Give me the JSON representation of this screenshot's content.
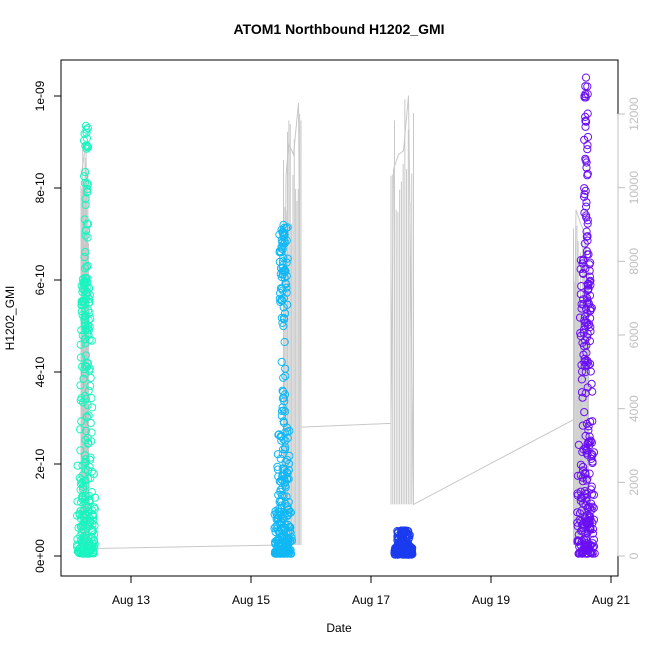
{
  "chart_data": {
    "type": "scatter",
    "title": "ATOM1 Northbound H1202_GMI",
    "xlabel": "Date",
    "ylabel": "H1202_GMI",
    "x_ticks": [
      "Aug 13",
      "Aug 15",
      "Aug 17",
      "Aug 19",
      "Aug 21"
    ],
    "y_ticks": [
      "0e+00",
      "2e-10",
      "4e-10",
      "6e-10",
      "8e-10",
      "1e-09"
    ],
    "y2_ticks": [
      "0",
      "2000",
      "4000",
      "6000",
      "8000",
      "10000",
      "12000"
    ],
    "xlim": [
      "2019-08-12 00:00",
      "2019-08-21 00:00"
    ],
    "ylim": [
      0,
      1e-09
    ],
    "y2lim": [
      0,
      12000
    ],
    "bursts": [
      {
        "date": "2019-08-12 06:00",
        "color": "#19f5c0",
        "low": 5e-12,
        "median": 1.2e-10,
        "high": 5.1e-10,
        "max": 9.35e-10,
        "upper_cluster": [
          4.7e-10,
          6.1e-10
        ]
      },
      {
        "date": "2019-08-15 13:00",
        "color": "#10b8f5",
        "low": 5e-12,
        "median": 6e-11,
        "high": 2.8e-10,
        "max": 7.2e-10,
        "upper_cluster": [
          5.4e-10,
          7.2e-10
        ]
      },
      {
        "date": "2019-08-17 13:00",
        "color": "#1b3bef",
        "low": 3e-12,
        "median": 1e-11,
        "high": 5.5e-11,
        "max": 5.5e-11,
        "upper_cluster": []
      },
      {
        "date": "2019-08-20 14:00",
        "color": "#6a0ff5",
        "low": 5e-12,
        "median": 1.2e-10,
        "high": 6.5e-10,
        "max": 1.04e-09,
        "upper_cluster": [
          4e-10,
          6.6e-10
        ]
      }
    ],
    "secondary_series": {
      "color": "#c8c8c8",
      "points": [
        {
          "date": "2019-08-12 04:00",
          "value": 10300
        },
        {
          "date": "2019-08-12 06:00",
          "value": 11200
        },
        {
          "date": "2019-08-12 07:00",
          "value": 200
        },
        {
          "date": "2019-08-15 13:00",
          "value": 300
        },
        {
          "date": "2019-08-15 14:00",
          "value": 10300
        },
        {
          "date": "2019-08-15 15:00",
          "value": 11200
        },
        {
          "date": "2019-08-15 17:00",
          "value": 10900
        },
        {
          "date": "2019-08-15 19:00",
          "value": 12300
        },
        {
          "date": "2019-08-15 20:00",
          "value": 3500
        },
        {
          "date": "2019-08-17 08:00",
          "value": 3600
        },
        {
          "date": "2019-08-17 09:00",
          "value": 10500
        },
        {
          "date": "2019-08-17 11:00",
          "value": 10900
        },
        {
          "date": "2019-08-17 13:00",
          "value": 11000
        },
        {
          "date": "2019-08-17 15:00",
          "value": 12500
        },
        {
          "date": "2019-08-17 17:00",
          "value": 1400
        },
        {
          "date": "2019-08-20 09:00",
          "value": 3700
        },
        {
          "date": "2019-08-20 10:00",
          "value": 9400
        },
        {
          "date": "2019-08-20 12:00",
          "value": 9000
        },
        {
          "date": "2019-08-20 14:00",
          "value": 8700
        },
        {
          "date": "2019-08-20 15:00",
          "value": 300
        }
      ]
    }
  }
}
